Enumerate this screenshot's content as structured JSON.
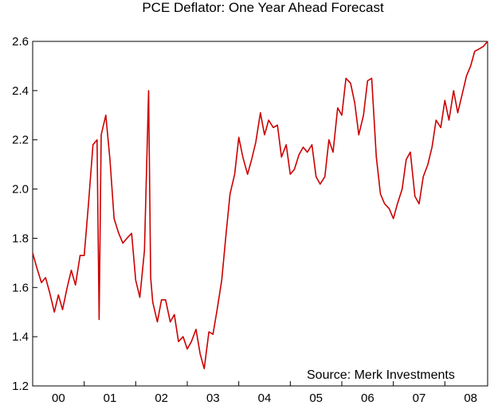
{
  "chart_data": {
    "type": "line",
    "title": "PCE Deflator: One Year Ahead Forecast",
    "annotation": "Source: Merk Investments",
    "xlabel": "",
    "ylabel": "",
    "x_tick_labels": [
      "00",
      "01",
      "02",
      "03",
      "04",
      "05",
      "06",
      "07",
      "08"
    ],
    "y_ticks": [
      1.2,
      1.4,
      1.6,
      1.8,
      2.0,
      2.2,
      2.4,
      2.6
    ],
    "y_tick_labels": [
      "1.2",
      "1.4",
      "1.6",
      "1.8",
      "2.0",
      "2.2",
      "2.4",
      "2.6"
    ],
    "x_range": [
      2000.0,
      2008.83
    ],
    "ylim": [
      1.2,
      2.6
    ],
    "grid": false,
    "line_color": "#cc0000",
    "series": [
      {
        "x": [
          2000.0,
          2000.08,
          2000.17,
          2000.25,
          2000.33,
          2000.42,
          2000.5,
          2000.58,
          2000.67,
          2000.75,
          2000.83,
          2000.92,
          2001.0,
          2001.08,
          2001.17,
          2001.25,
          2001.29,
          2001.33,
          2001.42,
          2001.5,
          2001.58,
          2001.67,
          2001.75,
          2001.83,
          2001.92,
          2002.0,
          2002.08,
          2002.17,
          2002.25,
          2002.29,
          2002.33,
          2002.42,
          2002.5,
          2002.58,
          2002.67,
          2002.75,
          2002.83,
          2002.92,
          2003.0,
          2003.08,
          2003.17,
          2003.25,
          2003.33,
          2003.42,
          2003.5,
          2003.58,
          2003.67,
          2003.75,
          2003.83,
          2003.92,
          2004.0,
          2004.08,
          2004.17,
          2004.25,
          2004.33,
          2004.42,
          2004.5,
          2004.58,
          2004.67,
          2004.75,
          2004.83,
          2004.92,
          2005.0,
          2005.08,
          2005.17,
          2005.25,
          2005.33,
          2005.42,
          2005.5,
          2005.58,
          2005.67,
          2005.75,
          2005.83,
          2005.92,
          2006.0,
          2006.08,
          2006.17,
          2006.25,
          2006.33,
          2006.42,
          2006.5,
          2006.58,
          2006.67,
          2006.75,
          2006.83,
          2006.92,
          2007.0,
          2007.08,
          2007.17,
          2007.25,
          2007.33,
          2007.42,
          2007.5,
          2007.58,
          2007.67,
          2007.75,
          2007.83,
          2007.92,
          2008.0,
          2008.08,
          2008.17,
          2008.25,
          2008.33,
          2008.42,
          2008.5,
          2008.58,
          2008.67,
          2008.75,
          2008.83
        ],
        "values": [
          1.74,
          1.68,
          1.62,
          1.64,
          1.58,
          1.5,
          1.57,
          1.51,
          1.6,
          1.67,
          1.61,
          1.73,
          1.73,
          1.93,
          2.18,
          2.2,
          1.47,
          2.22,
          2.3,
          2.12,
          1.88,
          1.82,
          1.78,
          1.8,
          1.82,
          1.63,
          1.56,
          1.75,
          2.4,
          1.64,
          1.54,
          1.46,
          1.55,
          1.55,
          1.46,
          1.49,
          1.38,
          1.4,
          1.35,
          1.38,
          1.43,
          1.33,
          1.27,
          1.42,
          1.41,
          1.51,
          1.63,
          1.81,
          1.98,
          2.06,
          2.21,
          2.13,
          2.06,
          2.12,
          2.19,
          2.31,
          2.22,
          2.28,
          2.25,
          2.26,
          2.13,
          2.18,
          2.06,
          2.08,
          2.14,
          2.17,
          2.15,
          2.18,
          2.05,
          2.02,
          2.05,
          2.2,
          2.15,
          2.33,
          2.3,
          2.45,
          2.43,
          2.35,
          2.22,
          2.3,
          2.44,
          2.45,
          2.13,
          1.98,
          1.94,
          1.92,
          1.88,
          1.94,
          2.0,
          2.12,
          2.15,
          1.97,
          1.94,
          2.05,
          2.1,
          2.17,
          2.28,
          2.25,
          2.36,
          2.28,
          2.4,
          2.31,
          2.38,
          2.46,
          2.5,
          2.56,
          2.57,
          2.58,
          2.6
        ]
      }
    ]
  }
}
